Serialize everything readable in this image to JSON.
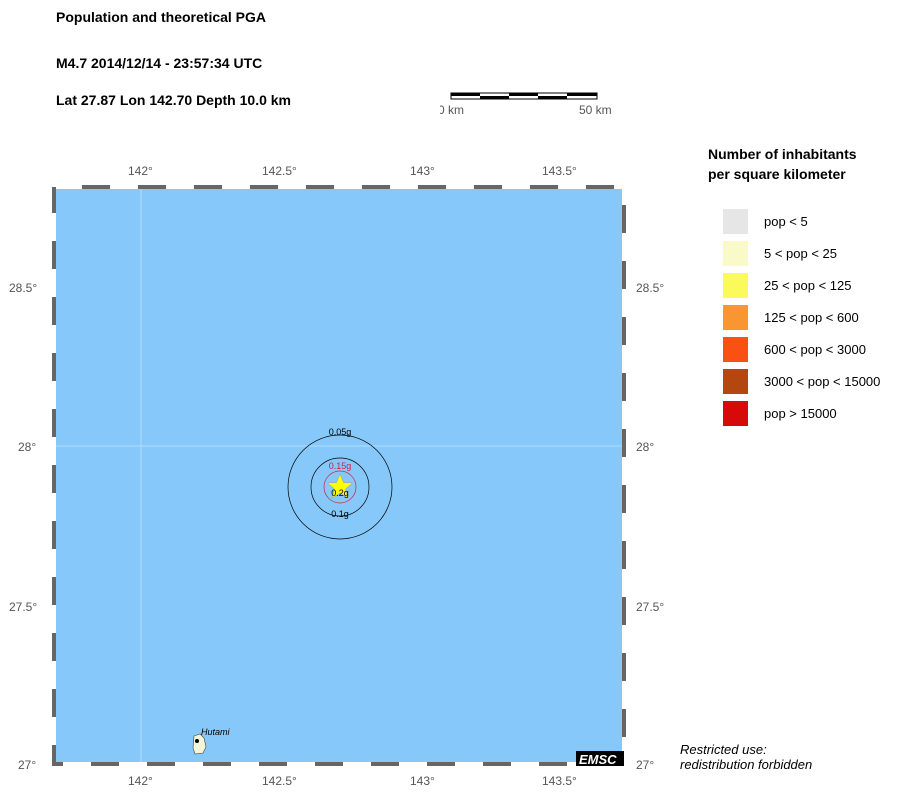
{
  "header": {
    "title": "Population and theoretical PGA",
    "event": "M4.7  2014/12/14 - 23:57:34 UTC",
    "location": "Lat 27.87    Lon 142.70     Depth  10.0 km"
  },
  "scale_bar": {
    "start": "0 km",
    "end": "50 km"
  },
  "map": {
    "lon_ticks": [
      "142°",
      "142.5°",
      "143°",
      "143.5°"
    ],
    "lat_ticks": [
      "28.5°",
      "28°",
      "27.5°",
      "27°"
    ],
    "ocean_color": "#87c8fa",
    "epicenter": {
      "lat": 27.87,
      "lon": 142.7,
      "marker": "star-icon",
      "color": "#ffff00"
    },
    "pga_contours": [
      {
        "label": "0.05g",
        "color": "#000000"
      },
      {
        "label": "0.1g",
        "color": "#000000"
      },
      {
        "label": "0.15g",
        "color": "#cc2244"
      },
      {
        "label": "0.2g",
        "color": "#000000"
      }
    ],
    "places": [
      {
        "name": "Hutami"
      }
    ],
    "logo": "EMSC"
  },
  "legend": {
    "title_line1": "Number of inhabitants",
    "title_line2": "per square kilometer",
    "items": [
      {
        "label": "pop < 5",
        "color": "#e6e6e6"
      },
      {
        "label": "5 < pop < 25",
        "color": "#fafac8"
      },
      {
        "label": "25 < pop < 125",
        "color": "#fafa5a"
      },
      {
        "label": "125 < pop < 600",
        "color": "#fa9632"
      },
      {
        "label": "600 < pop < 3000",
        "color": "#fa5014"
      },
      {
        "label": "3000 < pop < 15000",
        "color": "#b4460f"
      },
      {
        "label": "pop > 15000",
        "color": "#d70a0a"
      }
    ]
  },
  "notice": {
    "line1": "Restricted use:",
    "line2": "redistribution forbidden"
  }
}
